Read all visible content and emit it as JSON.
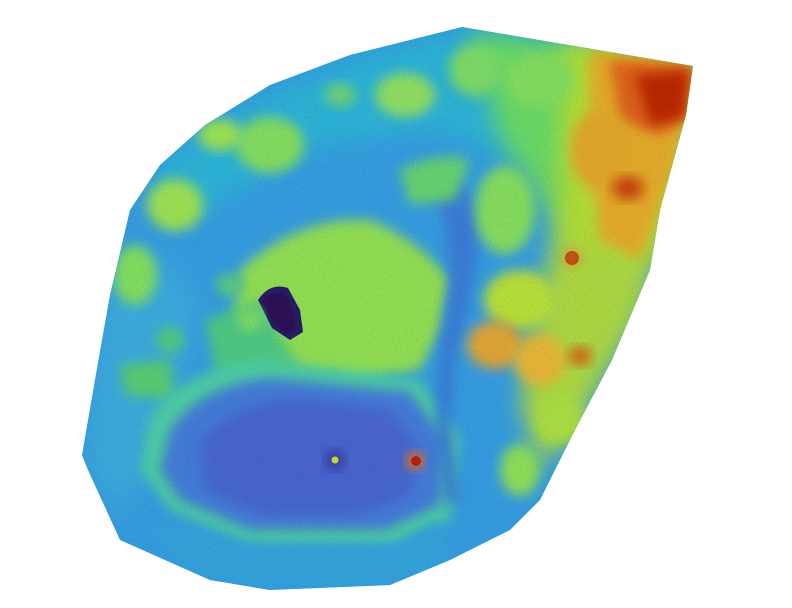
{
  "map": {
    "type": "elevation-heatmap",
    "colormap": "turbo",
    "background": "#ffffff",
    "palette": {
      "low": "#30123b",
      "mid_low": "#4777ef",
      "mid": "#1bd0d5",
      "mid_high": "#a4fc3c",
      "high": "#fb8022",
      "peak": "#7a0403"
    },
    "features": {
      "pit": "dark-depression",
      "basin": "flat-low-area",
      "ridge": "raised-rim",
      "trees": "canopy-clusters",
      "hot_spot": "high-elevation-points"
    }
  }
}
